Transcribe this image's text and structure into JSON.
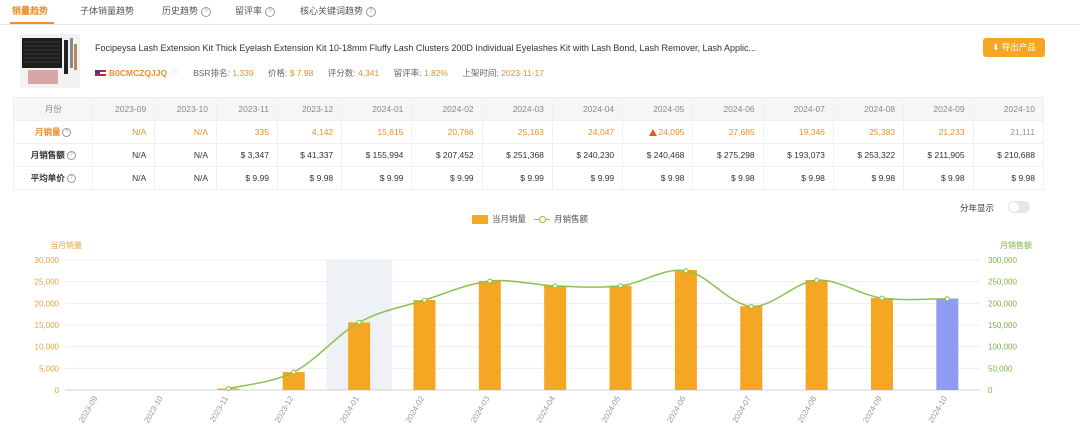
{
  "tabs": [
    {
      "label": "销量趋势",
      "active": true,
      "help": false
    },
    {
      "label": "子体销量趋势",
      "active": false,
      "help": false
    },
    {
      "label": "历史趋势",
      "active": false,
      "help": true
    },
    {
      "label": "留评率",
      "active": false,
      "help": true
    },
    {
      "label": "核心关键词趋势",
      "active": false,
      "help": true
    }
  ],
  "product": {
    "title": "Focipeysa Lash Extension Kit Thick Eyelash Extension Kit 10-18mm Fluffy Lash Clusters 200D Individual Eyelashes Kit with Lash Bond, Lash Remover, Lash Applic...",
    "asin": "B0CMCZQJJQ",
    "bsr_label": "BSR排名:",
    "bsr_value": "1,339",
    "price_label": "价格:",
    "price_value": "$ 7.98",
    "reviews_label": "评分数:",
    "reviews_value": "4,341",
    "review_rate_label": "留评率:",
    "review_rate_value": "1.82%",
    "launch_label": "上架时间:",
    "launch_value": "2023-11-17",
    "export_label": "导出产品"
  },
  "table": {
    "header_label": "月份",
    "months": [
      "2023-09",
      "2023-10",
      "2023-11",
      "2023-12",
      "2024-01",
      "2024-02",
      "2024-03",
      "2024-04",
      "2024-05",
      "2024-06",
      "2024-07",
      "2024-08",
      "2024-09",
      "2024-10"
    ],
    "rows": [
      {
        "label": "月销量",
        "values": [
          "N/A",
          "N/A",
          "335",
          "4,142",
          "15,615",
          "20,766",
          "25,163",
          "24,047",
          "24,095",
          "27,685",
          "19,346",
          "25,383",
          "21,233",
          "21,111"
        ]
      },
      {
        "label": "月销售额",
        "values": [
          "N/A",
          "N/A",
          "$ 3,347",
          "$ 41,337",
          "$ 155,994",
          "$ 207,452",
          "$ 251,368",
          "$ 240,230",
          "$ 240,468",
          "$ 275,298",
          "$ 193,073",
          "$ 253,322",
          "$ 211,905",
          "$ 210,688"
        ]
      },
      {
        "label": "平均单价",
        "values": [
          "N/A",
          "N/A",
          "$ 9.99",
          "$ 9.98",
          "$ 9.99",
          "$ 9.99",
          "$ 9.99",
          "$ 9.99",
          "$ 9.98",
          "$ 9.98",
          "$ 9.98",
          "$ 9.98",
          "$ 9.98",
          "$ 9.98"
        ]
      }
    ]
  },
  "controls": {
    "year_toggle_label": "分年显示"
  },
  "legend": {
    "sales": "当月销量",
    "revenue": "月销售额"
  },
  "colors": {
    "accent": "#e8902a",
    "bar": "#f5a623",
    "bar_last": "#8f9cf2",
    "line": "#8cc152",
    "left_axis": "#e8a23a",
    "right_axis": "#7cb342"
  },
  "chart_data": {
    "type": "bar",
    "categories": [
      "2023-09",
      "2023-10",
      "2023-11",
      "2023-12",
      "2024-01",
      "2024-02",
      "2024-03",
      "2024-04",
      "2024-05",
      "2024-06",
      "2024-07",
      "2024-08",
      "2024-09",
      "2024-10"
    ],
    "series": [
      {
        "name": "当月销量",
        "type": "bar",
        "axis": "left",
        "values": [
          0,
          0,
          335,
          4142,
          15615,
          20766,
          25163,
          24047,
          24095,
          27685,
          19346,
          25383,
          21233,
          21111
        ]
      },
      {
        "name": "月销售额",
        "type": "line",
        "axis": "right",
        "values": [
          0,
          0,
          3347,
          41337,
          155994,
          207452,
          251368,
          240230,
          240468,
          275298,
          193073,
          253322,
          211905,
          210688
        ]
      }
    ],
    "ylabel_left": "当月销量",
    "ylabel_right": "月销售额",
    "ylim_left": [
      0,
      30000
    ],
    "ylim_right": [
      0,
      300000
    ],
    "yticks_left": [
      "0",
      "5,000",
      "10,000",
      "15,000",
      "20,000",
      "25,000",
      "30,000"
    ],
    "yticks_right": [
      "0",
      "50,000",
      "100,000",
      "150,000",
      "200,000",
      "250,000",
      "300,000"
    ],
    "highlighted_category": "2024-01",
    "grid": true,
    "legend_position": "top-center"
  }
}
